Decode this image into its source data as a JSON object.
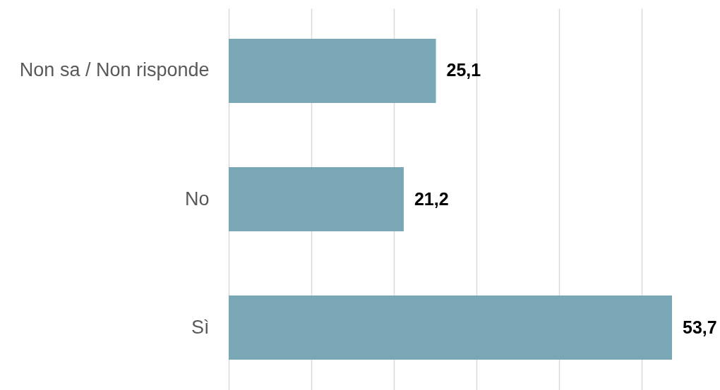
{
  "chart_data": {
    "type": "bar",
    "orientation": "horizontal",
    "categories": [
      "Non sa / Non risponde",
      "No",
      "Sì"
    ],
    "values": [
      25.1,
      21.2,
      53.7
    ],
    "value_labels": [
      "25,1",
      "21,2",
      "53,7"
    ],
    "color": "#7aa7b6",
    "xticks": [
      {
        "value": 0,
        "label": null
      },
      {
        "value": 10,
        "label": null
      },
      {
        "value": 20,
        "label": null
      },
      {
        "value": 30,
        "label": null
      },
      {
        "value": 40,
        "label": null
      },
      {
        "value": 50,
        "label": null
      }
    ],
    "grid": "x",
    "tick_labels": "y"
  }
}
